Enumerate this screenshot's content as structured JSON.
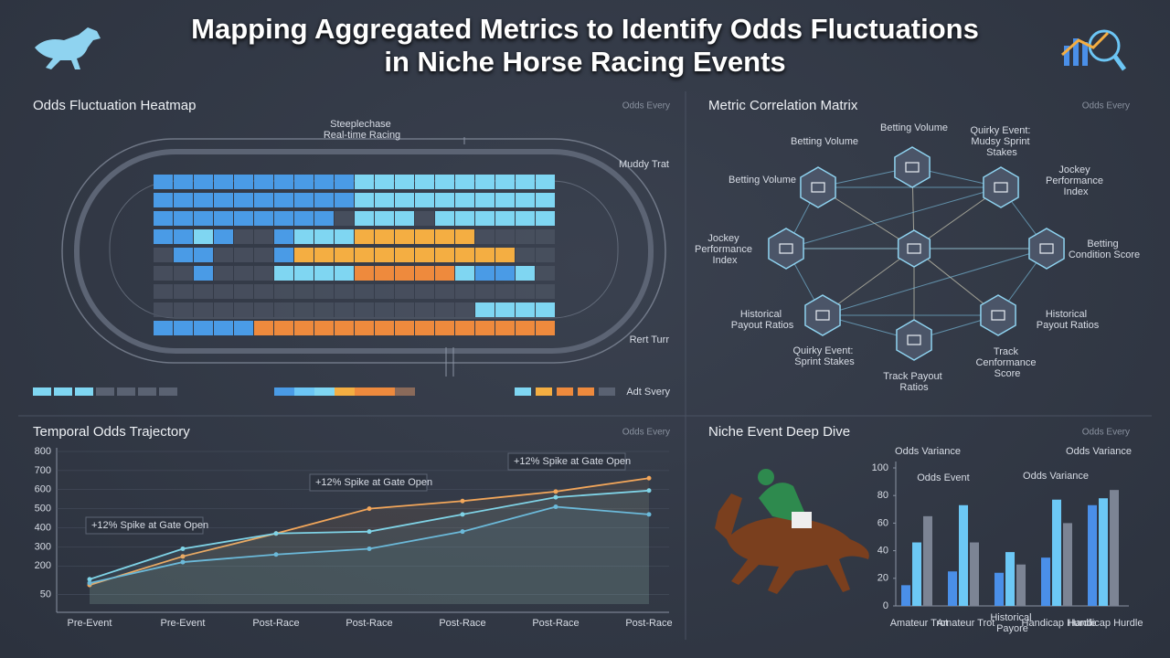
{
  "title": "Mapping Aggregated Metrics to Identify Odds Fluctuations in Niche Horse Racing Events",
  "chart_data": [
    {
      "type": "heatmap",
      "title": "Odds Fluctuation Heatmap",
      "tag": "Odds Every",
      "annotations": [
        "Steeplechase Real-time Racing",
        "Muddy Trat",
        "Rert Turr",
        "Adt Svery"
      ],
      "colors": [
        "#4b5262",
        "#7fd6f2",
        "#4a9be6",
        "#f4ae42",
        "#ee8a3d"
      ],
      "matrix": [
        [
          2,
          2,
          2,
          2,
          2,
          2,
          2,
          2,
          2,
          2,
          1,
          1,
          1,
          1,
          1,
          1,
          1,
          1,
          1,
          1
        ],
        [
          2,
          2,
          2,
          2,
          2,
          2,
          2,
          2,
          2,
          2,
          1,
          1,
          1,
          1,
          1,
          1,
          1,
          1,
          1,
          1
        ],
        [
          2,
          2,
          2,
          2,
          2,
          2,
          2,
          2,
          2,
          0,
          1,
          1,
          1,
          0,
          1,
          1,
          1,
          1,
          1,
          1
        ],
        [
          2,
          2,
          1,
          2,
          0,
          0,
          2,
          1,
          1,
          1,
          3,
          3,
          3,
          3,
          3,
          3,
          0,
          0,
          0,
          0
        ],
        [
          0,
          2,
          2,
          0,
          0,
          0,
          2,
          3,
          3,
          3,
          3,
          3,
          3,
          3,
          3,
          3,
          3,
          3,
          0,
          0
        ],
        [
          0,
          0,
          2,
          0,
          0,
          0,
          1,
          1,
          1,
          1,
          4,
          4,
          4,
          4,
          4,
          1,
          2,
          2,
          1,
          0
        ],
        [
          0,
          0,
          0,
          0,
          0,
          0,
          0,
          0,
          0,
          0,
          0,
          0,
          0,
          0,
          0,
          0,
          0,
          0,
          0,
          0
        ],
        [
          0,
          0,
          0,
          0,
          0,
          0,
          0,
          0,
          0,
          0,
          0,
          0,
          0,
          0,
          0,
          0,
          1,
          1,
          1,
          1
        ],
        [
          2,
          2,
          2,
          2,
          2,
          4,
          4,
          4,
          4,
          4,
          4,
          4,
          4,
          4,
          4,
          4,
          4,
          4,
          4,
          4
        ]
      ]
    },
    {
      "type": "network",
      "title": "Metric Correlation Matrix",
      "tag": "Odds Every",
      "nodes": [
        {
          "label": "Betting Volume"
        },
        {
          "label": "Quirky Event: Mudsy Sprint Stakes"
        },
        {
          "label": "Betting Volume"
        },
        {
          "label": "Betting Volume"
        },
        {
          "label": "Jockey Performance Index"
        },
        {
          "label": "Jockey Performance Index"
        },
        {
          "label": "Betting Condition Score"
        },
        {
          "label": "Historical Payout Ratios"
        },
        {
          "label": "Historical Payout Ratios"
        },
        {
          "label": "Quirky Event: Sprint Stakes"
        },
        {
          "label": "Track Payout Ratios"
        },
        {
          "label": "Track Cenformance Score"
        }
      ]
    },
    {
      "type": "line",
      "title": "Temporal Odds Trajectory",
      "tag": "Odds Every",
      "categories": [
        "Pre-Event",
        "Pre-Event",
        "Post-Race",
        "Post-Race",
        "Post-Race",
        "Post-Race",
        "Post-Race"
      ],
      "series": [
        {
          "color": "#f2a65a",
          "values": [
            100,
            250,
            370,
            500,
            540,
            590,
            660
          ]
        },
        {
          "color": "#7fd3e6",
          "values": [
            130,
            290,
            370,
            380,
            470,
            560,
            595
          ]
        },
        {
          "color": "#6bb9d9",
          "values": [
            110,
            220,
            260,
            290,
            380,
            510,
            470
          ]
        }
      ],
      "ylim": [
        0,
        800
      ],
      "yticks": [
        50,
        200,
        300,
        400,
        500,
        600,
        700,
        800
      ],
      "annotations": [
        "+12% Spike at Gate Open",
        "+12% Spike at Gate Open",
        "+12% Spike at Gate Open"
      ]
    },
    {
      "type": "bar",
      "title": "Niche Event Deep Dive",
      "tag": "Odds Every",
      "annotations": [
        "Odds Variance",
        "Odds Variance",
        "Odds Event",
        "Odds Variance"
      ],
      "categories": [
        "Amateur Trot",
        "Amateur Trot",
        "Historical Payore",
        "Handicap Hurdle",
        "Handicap Hurdle"
      ],
      "series": [
        {
          "color": "#4a8fe8",
          "values": [
            15,
            25,
            24,
            35,
            73
          ]
        },
        {
          "color": "#6cc8f5",
          "values": [
            46,
            73,
            39,
            77,
            78
          ]
        },
        {
          "color": "#7c8494",
          "values": [
            65,
            46,
            30,
            60,
            84
          ]
        }
      ],
      "ylim": [
        0,
        100
      ],
      "yticks": [
        0,
        20,
        40,
        60,
        80,
        100
      ]
    }
  ]
}
